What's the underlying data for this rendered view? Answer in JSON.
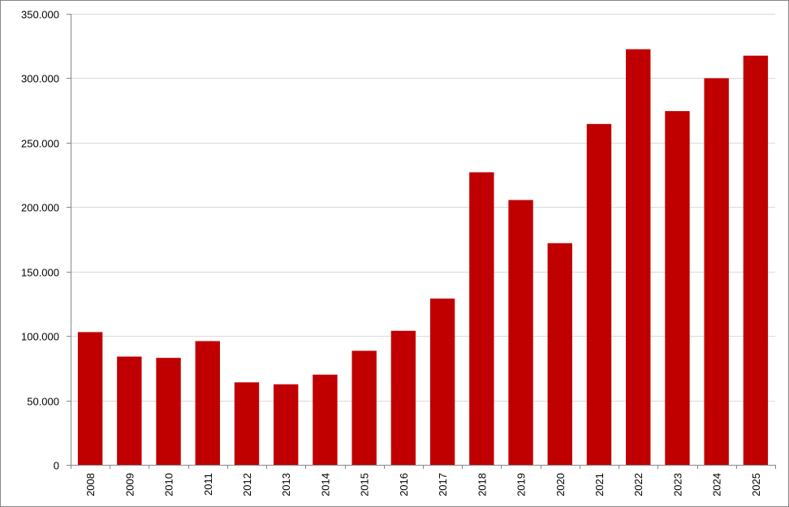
{
  "chart_data": {
    "type": "bar",
    "title": "",
    "xlabel": "",
    "ylabel": "",
    "categories": [
      "2008",
      "2009",
      "2010",
      "2011",
      "2012",
      "2013",
      "2014",
      "2015",
      "2016",
      "2017",
      "2018",
      "2019",
      "2020",
      "2021",
      "2022",
      "2023",
      "2024",
      "2025"
    ],
    "values": [
      103000,
      84000,
      83000,
      96000,
      64000,
      62500,
      70000,
      88500,
      104000,
      129000,
      227000,
      205500,
      172000,
      264500,
      322500,
      274500,
      300000,
      317500
    ],
    "ylim": [
      0,
      350000
    ],
    "yticks": [
      0,
      50000,
      100000,
      150000,
      200000,
      250000,
      300000,
      350000
    ],
    "ytick_labels": [
      "0",
      "50.000",
      "100.000",
      "150.000",
      "200.000",
      "250.000",
      "300.000",
      "350.000"
    ],
    "grid": true,
    "legend": "none",
    "bar_color": "#C00000",
    "grid_color": "#D9D9D9",
    "axis_color": "#868686"
  }
}
